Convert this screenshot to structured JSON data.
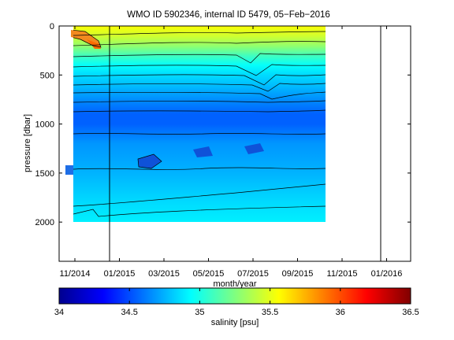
{
  "chart_data": {
    "type": "heatmap",
    "title": "WMO ID 5902346, internal ID 5479, 05−Feb−2016",
    "xlabel": "month/year",
    "ylabel": "pressure [dbar]",
    "x_ticks": [
      "11/2014",
      "01/2015",
      "03/2015",
      "05/2015",
      "07/2015",
      "09/2015",
      "11/2015",
      "01/2016"
    ],
    "y_ticks": [
      0,
      500,
      1000,
      1500,
      2000
    ],
    "ylim": [
      0,
      2400
    ],
    "y_reversed": true,
    "data_extent": {
      "x_start": "10/2014",
      "x_end": "10/2015",
      "max_pressure_dbar": 2000
    },
    "vertical_markers": [
      "12/2014",
      "12/2015"
    ],
    "salinity_profile": {
      "pressure_dbar": [
        0,
        100,
        200,
        300,
        400,
        500,
        600,
        700,
        800,
        900,
        1000,
        1200,
        1500,
        1800,
        2000
      ],
      "salinity_psu": [
        35.55,
        35.45,
        35.3,
        35.1,
        34.95,
        34.85,
        34.78,
        34.7,
        34.62,
        34.55,
        34.55,
        34.68,
        34.75,
        34.85,
        34.9
      ]
    },
    "colorbar": {
      "label": "salinity [psu]",
      "min": 34,
      "max": 36.5,
      "ticks": [
        "34",
        "34.5",
        "35",
        "35.5",
        "36",
        "36.5"
      ],
      "colormap": "jet"
    }
  }
}
